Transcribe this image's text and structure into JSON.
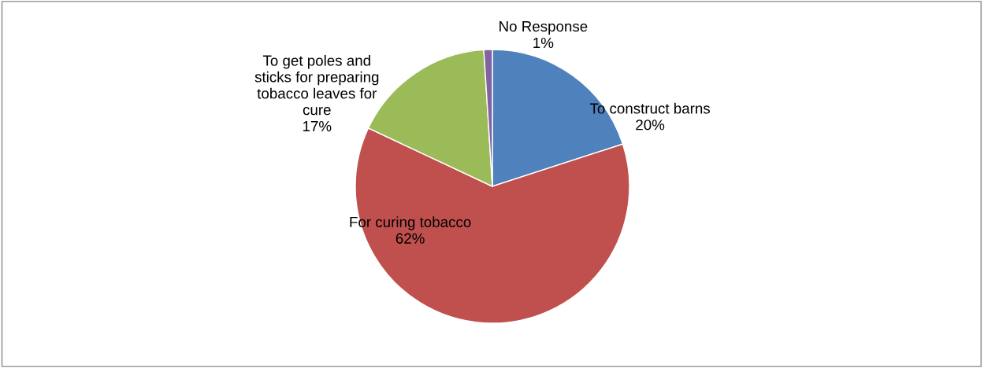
{
  "chart_data": {
    "type": "pie",
    "categories": [
      "To construct barns",
      "For curing tobacco",
      "To get poles and\nsticks for preparing\ntobacco leaves for\ncure",
      "No Response"
    ],
    "values": [
      20,
      62,
      17,
      1
    ],
    "value_labels": [
      "20%",
      "62%",
      "17%",
      "1%"
    ],
    "colors": [
      "#4f81bd",
      "#c0504d",
      "#9bbb59",
      "#8064a2"
    ],
    "legend": false
  }
}
